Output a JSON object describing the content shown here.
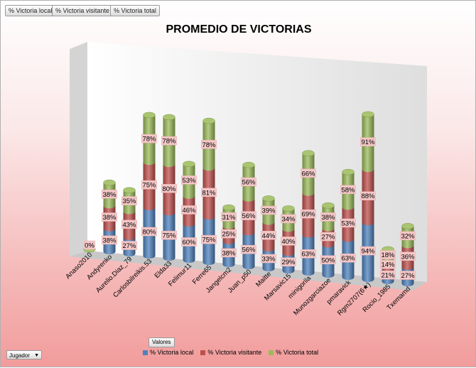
{
  "filters": [
    {
      "label": "% Victoria local"
    },
    {
      "label": "% Victoria visitante"
    },
    {
      "label": "% Victoria total"
    }
  ],
  "values_button": "Valores",
  "row_field": "Jugador",
  "colors": {
    "local": "#4f81bd",
    "visitante": "#c0504d",
    "total": "#9bbb59"
  },
  "chart_data": {
    "type": "bar",
    "stacked": true,
    "three_d": true,
    "title": "PROMEDIO DE VICTORIAS",
    "categories": [
      "Anaso2010",
      "Andyrenko",
      "Aurelio.Diaz_79",
      "Carlosbilreikis.53",
      "Elda33",
      "Felimur11",
      "Ferre65",
      "Jangelcm2",
      "Juan_p50",
      "Maitte",
      "Marsavic15",
      "minigorila",
      "Munozgarciazoe",
      "pmaravick",
      "Rgm2707(6★)",
      "Rocio_1985",
      "Txemamd"
    ],
    "series": [
      {
        "name": "% Victoria local",
        "values": [
          0,
          38,
          27,
          80,
          75,
          60,
          75,
          38,
          56,
          33,
          29,
          63,
          50,
          63,
          94,
          21,
          27
        ],
        "labels": [
          "0%",
          "38%",
          "27%",
          "80%",
          "75%",
          "60%",
          "75%",
          "38%",
          "56%",
          "33%",
          "29%",
          "63%",
          "50%",
          "63%",
          "94%",
          "21%",
          "27%"
        ]
      },
      {
        "name": "% Victoria visitante",
        "values": [
          0,
          38,
          43,
          75,
          80,
          46,
          81,
          25,
          56,
          44,
          40,
          69,
          27,
          53,
          88,
          14,
          36
        ],
        "labels": [
          "",
          "38%",
          "43%",
          "75%",
          "80%",
          "46%",
          "81%",
          "25%",
          "56%",
          "44%",
          "40%",
          "69%",
          "27%",
          "53%",
          "88%",
          "14%",
          "36%"
        ]
      },
      {
        "name": "% Victoria total",
        "values": [
          0,
          38,
          35,
          78,
          78,
          53,
          78,
          31,
          56,
          39,
          34,
          66,
          38,
          58,
          91,
          18,
          32
        ],
        "labels": [
          "",
          "38%",
          "35%",
          "78%",
          "78%",
          "53%",
          "78%",
          "31%",
          "56%",
          "39%",
          "34%",
          "66%",
          "38%",
          "58%",
          "91%",
          "18%",
          "32%"
        ]
      }
    ],
    "legend": [
      "% Victoria local",
      "% Victoria visitante",
      "% Victoria total"
    ],
    "legend_position": "bottom"
  }
}
